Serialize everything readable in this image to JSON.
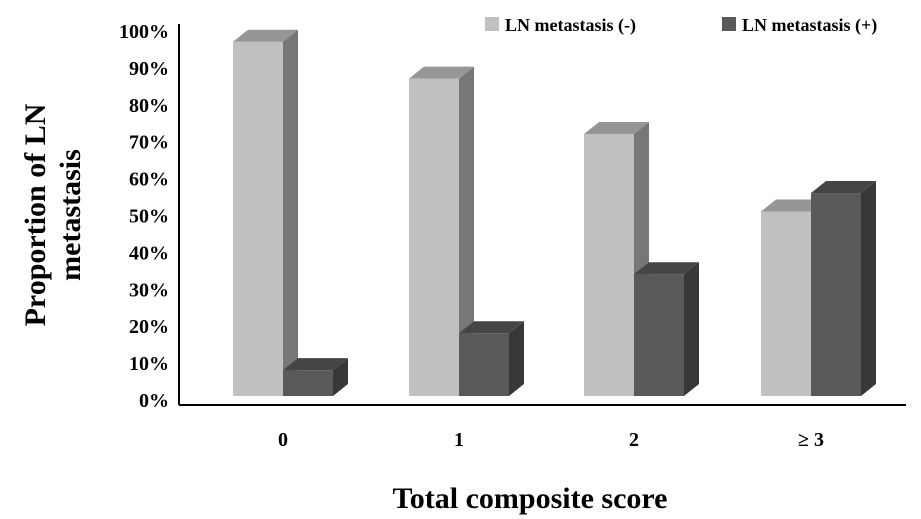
{
  "chart_data": {
    "type": "bar",
    "title": "",
    "xlabel": "Total composite score",
    "ylabel_lines": [
      "Proportion of LN",
      "metastasis"
    ],
    "categories": [
      "0",
      "1",
      "2",
      "≥ 3"
    ],
    "series": [
      {
        "name": "LN metastasis (-)",
        "values": [
          96,
          86,
          71,
          50
        ],
        "color": "#c0c0c0"
      },
      {
        "name": "LN metastasis (+)",
        "values": [
          7,
          17,
          33,
          55
        ],
        "color": "#595959"
      }
    ],
    "ylim": [
      0,
      100
    ],
    "yticks": [
      "0%",
      "10%",
      "20%",
      "30%",
      "40%",
      "50%",
      "60%",
      "70%",
      "80%",
      "90%",
      "100%"
    ],
    "grid": false,
    "legend_position": "top-right",
    "style": "3d-clustered-bar"
  }
}
